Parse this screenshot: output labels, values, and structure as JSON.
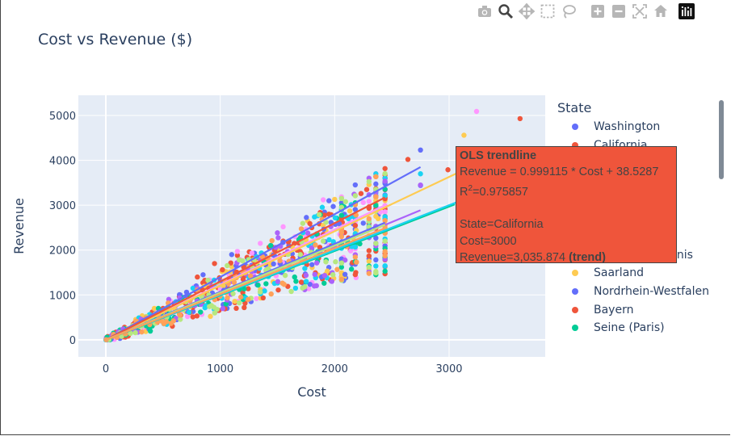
{
  "toolbar": {
    "icons": [
      "camera-icon",
      "zoom-icon",
      "pan-icon",
      "box-select-icon",
      "lasso-icon",
      "zoom-in-icon",
      "zoom-out-icon",
      "autoscale-icon",
      "reset-axes-icon",
      "plotly-logo"
    ]
  },
  "chart_data": {
    "type": "scatter",
    "title": "Cost vs Revenue ($)",
    "xlabel": "Cost",
    "ylabel": "Revenue",
    "xlim": [
      -240,
      3840
    ],
    "ylim": [
      -380,
      5450
    ],
    "x_ticks": [
      "0",
      "1000",
      "2000",
      "3000"
    ],
    "y_ticks": [
      "0",
      "1000",
      "2000",
      "3000",
      "4000",
      "5000"
    ],
    "legend_title": "State",
    "legend_placement": "right",
    "grid": true,
    "series": [
      {
        "name": "Washington",
        "color": "#636efa",
        "trend_slope": 1.4,
        "trend_end": 2750,
        "points": [
          [
            2750,
            4230
          ],
          [
            2750,
            3440
          ],
          [
            2440,
            3600
          ],
          [
            1950,
            3100
          ],
          [
            1100,
            1900
          ],
          [
            1300,
            1650
          ],
          [
            1700,
            2200
          ],
          [
            650,
            1000
          ],
          [
            850,
            1450
          ],
          [
            2380,
            2780
          ],
          [
            1500,
            2000
          ],
          [
            420,
            600
          ]
        ]
      },
      {
        "name": "California",
        "color": "#ef553b",
        "trend_slope": 0.999115,
        "trend_end": 3000,
        "points": [
          [
            3620,
            4930
          ],
          [
            2990,
            3790
          ],
          [
            2640,
            4020
          ],
          [
            2440,
            3500
          ],
          [
            1150,
            1880
          ],
          [
            1800,
            2500
          ],
          [
            2060,
            2900
          ],
          [
            1200,
            1350
          ],
          [
            800,
            1400
          ],
          [
            1550,
            2200
          ],
          [
            950,
            1700
          ],
          [
            2280,
            3350
          ]
        ]
      },
      {
        "name": "Seine Saint Denis",
        "color": "#ff97ff",
        "trend_slope": 1.23,
        "trend_end": 2440,
        "points": [
          [
            3240,
            5090
          ],
          [
            1900,
            3120
          ],
          [
            1550,
            2520
          ],
          [
            1150,
            1970
          ],
          [
            2250,
            3060
          ],
          [
            700,
            900
          ],
          [
            1350,
            2150
          ],
          [
            1750,
            2310
          ],
          [
            1950,
            2100
          ],
          [
            2400,
            2850
          ],
          [
            550,
            680
          ],
          [
            1020,
            1300
          ]
        ]
      },
      {
        "name": "Saarland",
        "color": "#fecb52",
        "trend_slope": 1.21,
        "trend_end": 3130,
        "points": [
          [
            3130,
            4560
          ],
          [
            2300,
            3460
          ],
          [
            1750,
            2230
          ],
          [
            1250,
            1630
          ],
          [
            2000,
            3130
          ],
          [
            900,
            1200
          ],
          [
            1450,
            1900
          ],
          [
            600,
            700
          ],
          [
            2380,
            2700
          ],
          [
            1050,
            1520
          ],
          [
            1900,
            2550
          ]
        ]
      },
      {
        "name": "Nordrhein-Westfalen",
        "color": "#636efa",
        "trend_slope": 1.07,
        "trend_end": 2440,
        "points": [
          [
            2440,
            2380
          ],
          [
            1300,
            1540
          ],
          [
            1900,
            2350
          ],
          [
            1000,
            1300
          ],
          [
            2060,
            2500
          ],
          [
            1700,
            1850
          ],
          [
            600,
            800
          ],
          [
            2250,
            2600
          ],
          [
            1600,
            2100
          ],
          [
            480,
            550
          ]
        ]
      },
      {
        "name": "Bayern",
        "color": "#ef553b",
        "trend_slope": 1.3,
        "trend_end": 2440,
        "points": [
          [
            2230,
            3260
          ],
          [
            1600,
            2200
          ],
          [
            1280,
            1820
          ],
          [
            2440,
            2750
          ],
          [
            900,
            1150
          ],
          [
            1850,
            2350
          ],
          [
            1950,
            2800
          ],
          [
            500,
            700
          ],
          [
            2120,
            2270
          ],
          [
            1400,
            1720
          ]
        ]
      },
      {
        "name": "Seine (Paris)",
        "color": "#00cc96",
        "trend_slope": 0.99,
        "trend_end": 3050,
        "points": [
          [
            2360,
            1450
          ],
          [
            2060,
            1620
          ],
          [
            2440,
            1530
          ],
          [
            1200,
            900
          ],
          [
            1050,
            800
          ],
          [
            2300,
            2280
          ],
          [
            1650,
            1400
          ],
          [
            800,
            900
          ],
          [
            2220,
            2140
          ],
          [
            1400,
            1250
          ],
          [
            600,
            500
          ],
          [
            1850,
            1750
          ]
        ]
      },
      {
        "name": "",
        "color": "#19d3f3",
        "trend_slope": 1.0,
        "trend_end": 3080,
        "points": [
          [
            2360,
            3700
          ],
          [
            2750,
            3700
          ],
          [
            2120,
            2700
          ],
          [
            1800,
            2020
          ],
          [
            950,
            1200
          ],
          [
            1550,
            1550
          ],
          [
            2440,
            1650
          ],
          [
            400,
            480
          ],
          [
            1250,
            1400
          ],
          [
            2060,
            2040
          ]
        ]
      },
      {
        "name": "",
        "color": "#ab63fa",
        "trend_slope": 1.05,
        "trend_end": 2750,
        "points": [
          [
            2750,
            3450
          ],
          [
            2000,
            2100
          ],
          [
            2360,
            3300
          ],
          [
            800,
            1150
          ],
          [
            1600,
            1680
          ],
          [
            1300,
            1400
          ],
          [
            2440,
            2420
          ],
          [
            550,
            900
          ],
          [
            1100,
            1300
          ],
          [
            1850,
            1860
          ]
        ]
      },
      {
        "name": "",
        "color": "#b6e880",
        "trend_slope": 1.05,
        "trend_end": 2440,
        "points": [
          [
            2060,
            3150
          ],
          [
            2440,
            2200
          ],
          [
            1700,
            1900
          ],
          [
            900,
            1000
          ],
          [
            1400,
            1550
          ],
          [
            2300,
            2640
          ],
          [
            700,
            850
          ],
          [
            1900,
            2200
          ]
        ]
      },
      {
        "name": "",
        "color": "#ffa15a",
        "trend_slope": 1.02,
        "trend_end": 2440,
        "points": [
          [
            2440,
            2500
          ],
          [
            1600,
            1750
          ],
          [
            1050,
            1050
          ],
          [
            2060,
            2300
          ],
          [
            750,
            950
          ],
          [
            1950,
            2000
          ],
          [
            2300,
            2700
          ],
          [
            450,
            400
          ]
        ]
      }
    ],
    "cost_columns": [
      2060,
      2180,
      2300,
      2360,
      2440
    ],
    "hover": {
      "title": "OLS trendline",
      "equation": "Revenue = 0.999115 * Cost + 38.5287",
      "r2_prefix": "R",
      "r2_sup": "2",
      "r2_value": "=0.975857",
      "state_line": "State=California",
      "cost_line": "Cost=3000",
      "revenue_line": "Revenue=3,035.874",
      "trend_tag": "(trend)",
      "intercept": 38.5287
    }
  }
}
